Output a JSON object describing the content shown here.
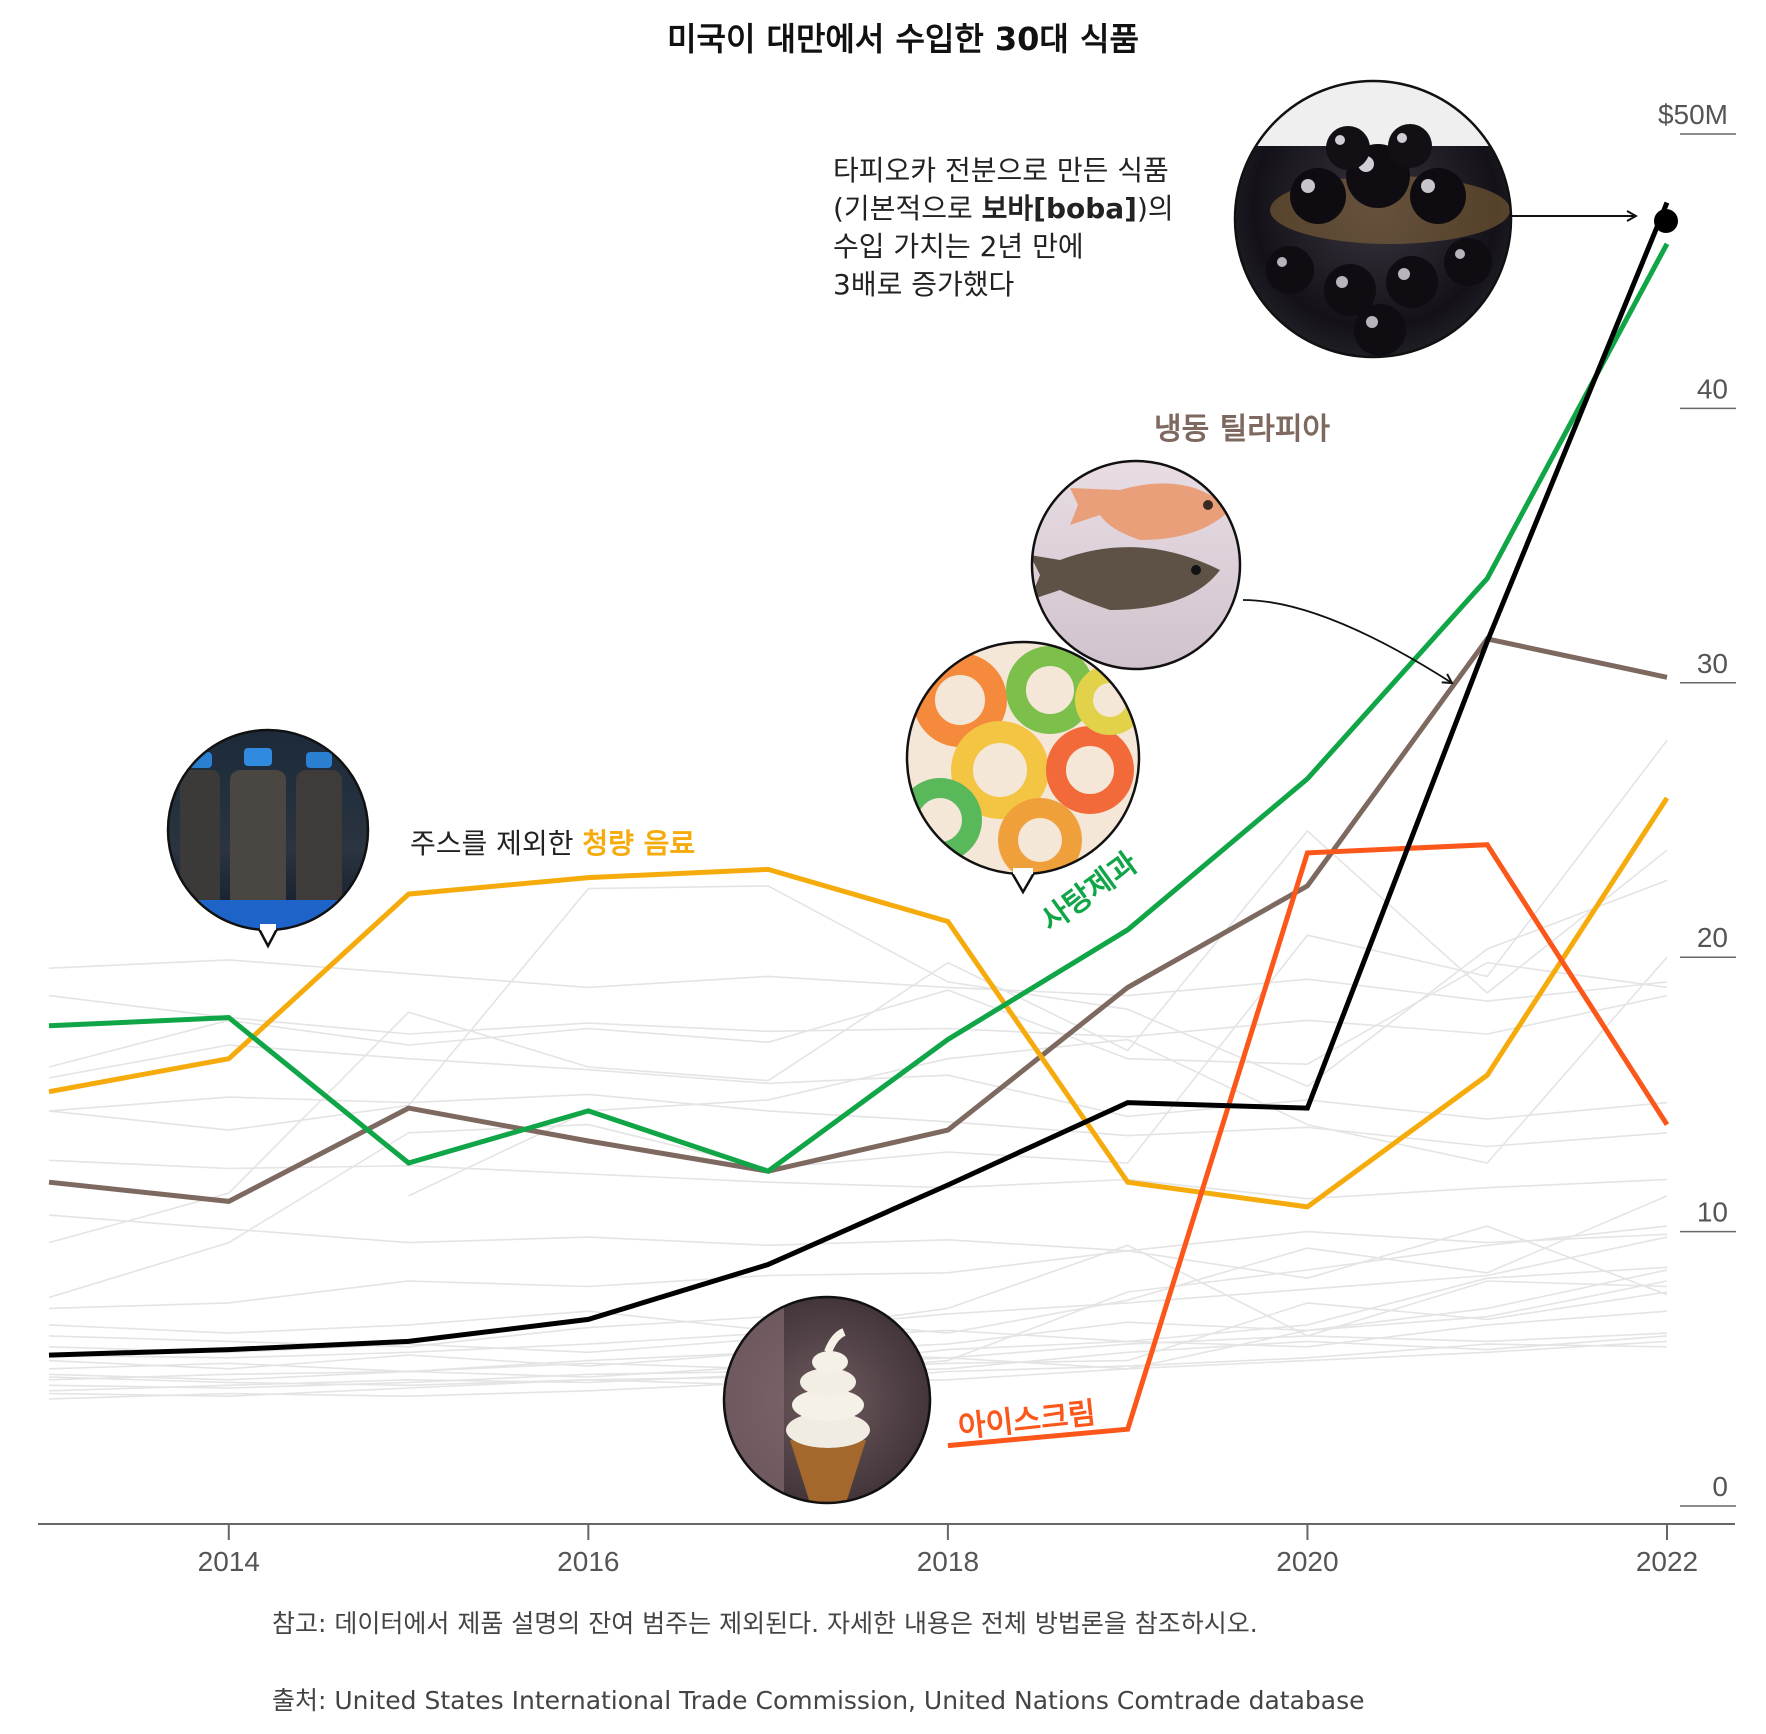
{
  "title": "미국이 대만에서 수입한 30대 식품",
  "colors": {
    "background": "#ffffff",
    "axis": "#666666",
    "tick_text": "#555555",
    "background_lines": "#e4e4e4",
    "boba": "#000000",
    "candy": "#10a547",
    "tilapia": "#7d6960",
    "soft_drinks": "#f5ab0b",
    "ice_cream": "#fc571b"
  },
  "chart_data": {
    "type": "line",
    "title": "미국이 대만에서 수입한 30대 식품",
    "xlabel": "",
    "ylabel": "",
    "x_range": [
      2013,
      2022
    ],
    "ylim": [
      0,
      50
    ],
    "x_ticks": [
      "2014",
      "2016",
      "2018",
      "2020",
      "2022"
    ],
    "x_tick_values": [
      2014,
      2016,
      2018,
      2020,
      2022
    ],
    "y_ticks": [
      "$50M",
      "40",
      "30",
      "20",
      "10",
      "0"
    ],
    "y_tick_values": [
      50,
      40,
      30,
      20,
      10,
      0
    ],
    "series": [
      {
        "key": "boba",
        "name": "타피오카 전분으로 만든 식품 (보바)",
        "color": "#000000",
        "x": [
          2013,
          2014,
          2015,
          2016,
          2017,
          2018,
          2019,
          2020,
          2021,
          2022
        ],
        "values": [
          5.5,
          5.7,
          6.0,
          6.8,
          8.8,
          11.7,
          14.7,
          14.5,
          31.5,
          47.5
        ]
      },
      {
        "key": "candy",
        "name": "사탕제과",
        "color": "#10a547",
        "x": [
          2013,
          2014,
          2015,
          2016,
          2017,
          2018,
          2019,
          2020,
          2021,
          2022
        ],
        "values": [
          17.5,
          17.8,
          12.5,
          14.4,
          12.2,
          17.0,
          21.0,
          26.5,
          33.8,
          46.0
        ]
      },
      {
        "key": "tilapia",
        "name": "냉동 틸라피아",
        "color": "#7d6960",
        "x": [
          2013,
          2014,
          2015,
          2016,
          2017,
          2018,
          2019,
          2020,
          2021,
          2022
        ],
        "values": [
          11.8,
          11.1,
          14.5,
          13.3,
          12.2,
          13.7,
          18.9,
          22.6,
          31.6,
          30.2
        ]
      },
      {
        "key": "soft_drinks",
        "name": "주스를 제외한 청량 음료",
        "color": "#f5ab0b",
        "x": [
          2013,
          2014,
          2015,
          2016,
          2017,
          2018,
          2019,
          2020,
          2021,
          2022
        ],
        "values": [
          15.1,
          16.3,
          22.3,
          22.9,
          23.2,
          21.3,
          11.8,
          10.9,
          15.7,
          25.8
        ]
      },
      {
        "key": "ice_cream",
        "name": "아이스크림",
        "color": "#fc571b",
        "x": [
          2018,
          2019,
          2020,
          2021,
          2022
        ],
        "values": [
          2.2,
          2.8,
          23.8,
          24.1,
          13.9
        ]
      }
    ],
    "background_series_color": "#e4e4e4",
    "background_series": [
      [
        19.6,
        19.9,
        19.4,
        18.9,
        19.3,
        18.9,
        18.6,
        19.2,
        18.4,
        19.1
      ],
      [
        18.6,
        17.8,
        17.2,
        17.6,
        17.3,
        17.4,
        17.1,
        17.7,
        17.2,
        18.6
      ],
      [
        15.6,
        16.8,
        16.3,
        15.9,
        15.4,
        15.7,
        14.2,
        14.8,
        14.1,
        14.7
      ],
      [
        14.4,
        14.9,
        14.7,
        15.0,
        14.4,
        14.0,
        13.5,
        13.8,
        13.1,
        13.6
      ],
      [
        12.6,
        12.3,
        12.4,
        12.1,
        11.8,
        11.6,
        11.9,
        11.2,
        11.6,
        11.9
      ],
      [
        10.6,
        10.1,
        9.6,
        9.8,
        9.5,
        9.7,
        9.3,
        10.0,
        9.6,
        9.9
      ],
      [
        7.6,
        9.6,
        13.6,
        13.9,
        12.3,
        12.9,
        12.5,
        20.8,
        19.3,
        27.9
      ],
      [
        14.4,
        13.7,
        14.6,
        22.5,
        22.6,
        19.1,
        18.1,
        15.3,
        20.3,
        22.8
      ],
      [
        9.6,
        11.4,
        18.0,
        16.0,
        15.5,
        19.8,
        16.6,
        24.6,
        18.7,
        23.9
      ],
      [
        16.0,
        17.7,
        16.8,
        17.4,
        16.9,
        18.8,
        16.3,
        16.1,
        19.8,
        18.9
      ],
      [
        6.6,
        6.3,
        6.6,
        7.1,
        6.4,
        7.0,
        7.4,
        7.9,
        8.4,
        9.8
      ],
      [
        6.2,
        6.0,
        5.8,
        6.5,
        6.9,
        6.3,
        7.5,
        9.4,
        8.5,
        11.3
      ],
      [
        5.8,
        5.6,
        5.9,
        5.6,
        6.1,
        6.4,
        6.0,
        6.6,
        8.3,
        8.7
      ],
      [
        5.3,
        5.0,
        5.5,
        5.1,
        5.6,
        5.9,
        6.7,
        6.4,
        6.9,
        8.2
      ],
      [
        5.0,
        5.2,
        4.9,
        5.3,
        5.6,
        5.4,
        5.9,
        6.2,
        6.0,
        6.3
      ],
      [
        4.8,
        4.6,
        4.9,
        4.7,
        5.1,
        5.4,
        5.0,
        6.4,
        7.2,
        8.6
      ],
      [
        4.6,
        4.8,
        4.9,
        5.2,
        5.0,
        5.7,
        6.0,
        5.8,
        6.6,
        7.1
      ],
      [
        4.4,
        4.3,
        4.5,
        4.8,
        4.9,
        5.2,
        5.3,
        7.4,
        6.8,
        7.8
      ],
      [
        4.2,
        4.4,
        4.6,
        4.5,
        4.8,
        5.0,
        5.6,
        6.0,
        5.7,
        6.2
      ],
      [
        4.1,
        4.0,
        4.3,
        4.6,
        4.4,
        4.9,
        5.1,
        5.4,
        5.9,
        5.8
      ],
      [
        3.9,
        4.1,
        4.0,
        4.2,
        4.5,
        4.6,
        5.0,
        5.3,
        5.6,
        6.0
      ],
      [
        4.7,
        4.5,
        4.4,
        4.6,
        4.7,
        5.3,
        7.8,
        8.6,
        9.5,
        10.2
      ],
      [
        5.5,
        5.4,
        5.6,
        5.9,
        6.3,
        7.2,
        9.5,
        6.2,
        8.2,
        8.0
      ],
      [
        7.2,
        7.4,
        8.2,
        8.0,
        8.4,
        8.5,
        9.3,
        8.3,
        10.2,
        7.7
      ],
      [
        null,
        null,
        11.3,
        14.4,
        14.8,
        16.3,
        17.0,
        13.9,
        12.5,
        20.0
      ]
    ],
    "annotations": {
      "boba_text": [
        "타피오카 전분으로 만든 식품",
        "(기본적으로 ",
        "보바[boba]",
        ")의",
        "수입 가치는 2년 만에",
        "3배로 증가했다"
      ],
      "tilapia_label": "냉동 틸라피아",
      "soft_drinks_prefix": "주스를 제외한 ",
      "soft_drinks_label": "청량 음료",
      "candy_label": "사탕제과",
      "ice_cream_label": "아이스크림"
    },
    "image_icons": [
      "boba-photo",
      "tilapia-photo",
      "candy-photo",
      "soft-drink-photo",
      "ice-cream-photo"
    ]
  },
  "note": "참고: 데이터에서 제품 설명의 잔여 범주는 제외된다. 자세한 내용은 전체 방법론을 참조하시오.",
  "source": "출처: United States International Trade Commission, United Nations Comtrade database"
}
